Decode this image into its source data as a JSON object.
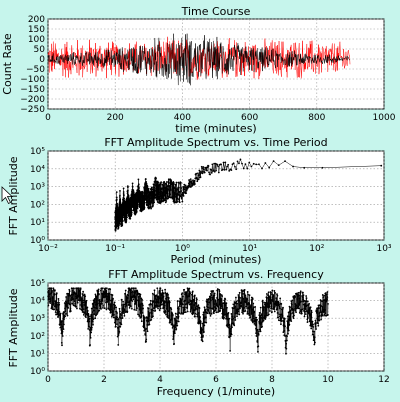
{
  "figure": {
    "background_color": "#c6f5ec"
  },
  "chart_data": [
    {
      "type": "line",
      "title": "Time Course",
      "xlabel": "time (minutes)",
      "ylabel": "Count Rate",
      "xlim": [
        0,
        1000
      ],
      "ylim": [
        -250,
        200
      ],
      "xticks": [
        "0",
        "200",
        "400",
        "600",
        "800",
        "1000"
      ],
      "yticks": [
        "200",
        "150",
        "100",
        "50",
        "0",
        "−50",
        "−100",
        "−150",
        "−200",
        "−250"
      ],
      "grid": true,
      "series": [
        {
          "color": "#ff0000",
          "x_range": [
            0,
            900
          ],
          "envelope_x": [
            0,
            100,
            200,
            300,
            400,
            500,
            600,
            700,
            800,
            900
          ],
          "envelope_amp": [
            110,
            120,
            100,
            110,
            120,
            115,
            110,
            115,
            110,
            90
          ]
        },
        {
          "color": "#000000",
          "x_range": [
            0,
            900
          ],
          "envelope_x": [
            0,
            100,
            200,
            300,
            400,
            500,
            600,
            700,
            800,
            900
          ],
          "envelope_amp": [
            30,
            40,
            60,
            110,
            160,
            120,
            80,
            50,
            35,
            20
          ]
        }
      ]
    },
    {
      "type": "scatter",
      "title": "FFT Amplitude Spectrum vs. Time Period",
      "xlabel": "Period (minutes)",
      "ylabel": "FFT Amplitude",
      "xscale": "log",
      "yscale": "log",
      "xlim": [
        0.01,
        1000
      ],
      "ylim": [
        1,
        100000
      ],
      "xticks": [
        "10⁻²",
        "10⁻¹",
        "10⁰",
        "10¹",
        "10²",
        "10³"
      ],
      "yticks": [
        "10⁵",
        "10⁴",
        "10³",
        "10²",
        "10¹",
        "10⁰"
      ],
      "grid": true,
      "series": [
        {
          "color": "#000000",
          "x": [
            0.1,
            0.2,
            0.5,
            1,
            2,
            5,
            10,
            50,
            100,
            300,
            900
          ],
          "y": [
            300,
            2000,
            3000,
            500,
            8000,
            15000,
            20000,
            15000,
            20000,
            10000,
            20000
          ]
        }
      ]
    },
    {
      "type": "scatter",
      "title": "FFT Amplitude Spectrum vs. Frequency",
      "xlabel": "Frequency (1/minute)",
      "ylabel": "FFT Amplitude",
      "yscale": "log",
      "xlim": [
        0,
        12
      ],
      "ylim": [
        1,
        100000
      ],
      "xticks": [
        "0",
        "2",
        "4",
        "6",
        "8",
        "10",
        "12"
      ],
      "yticks": [
        "10⁵",
        "10⁴",
        "10³",
        "10²",
        "10¹",
        "10⁰"
      ],
      "grid": true,
      "series": [
        {
          "color": "#000000",
          "x_range": [
            0,
            10
          ],
          "lobe_period": 1.0,
          "peak_amp": 20000,
          "trough_amp": 30
        }
      ]
    }
  ]
}
